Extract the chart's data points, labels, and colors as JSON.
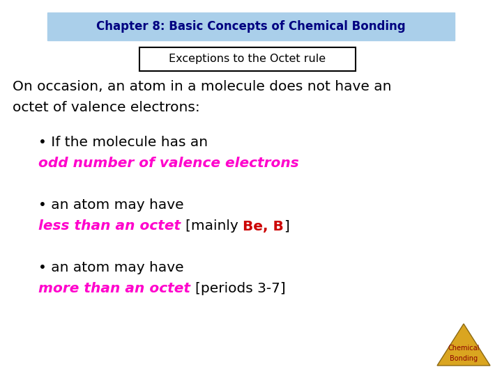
{
  "bg_color": "#ffffff",
  "title_box_color": "#aacfea",
  "title_text": "Chapter 8: Basic Concepts of Chemical Bonding",
  "title_text_color": "#000080",
  "subtitle_text": "Exceptions to the Octet rule",
  "subtitle_box_color": "#ffffff",
  "subtitle_border_color": "#000000",
  "body_text_color": "#000000",
  "magenta_color": "#ff00cc",
  "red_color": "#cc0000",
  "black_color": "#000000",
  "triangle_color": "#DAA520",
  "triangle_border_color": "#8B6914",
  "triangle_text_color": "#8B0000",
  "intro_line1": "On occasion, an atom in a molecule does not have an",
  "intro_line2": "octet of valence electrons:",
  "bullet1_line1": "• If the molecule has an",
  "bullet1_line2": "odd number of valence electrons",
  "bullet2_line1": "• an atom may have",
  "bullet2_line2_magenta": "less than an octet",
  "bullet2_line2_black": "[mainly ",
  "bullet2_line2_red": "Be, B",
  "bullet2_line2_black2": "]",
  "bullet3_line1": "• an atom may have",
  "bullet3_line2_magenta": "more than an octet",
  "bullet3_line2_black": "[periods 3-7]",
  "triangle_label1": "Chemical",
  "triangle_label2": "Bonding"
}
